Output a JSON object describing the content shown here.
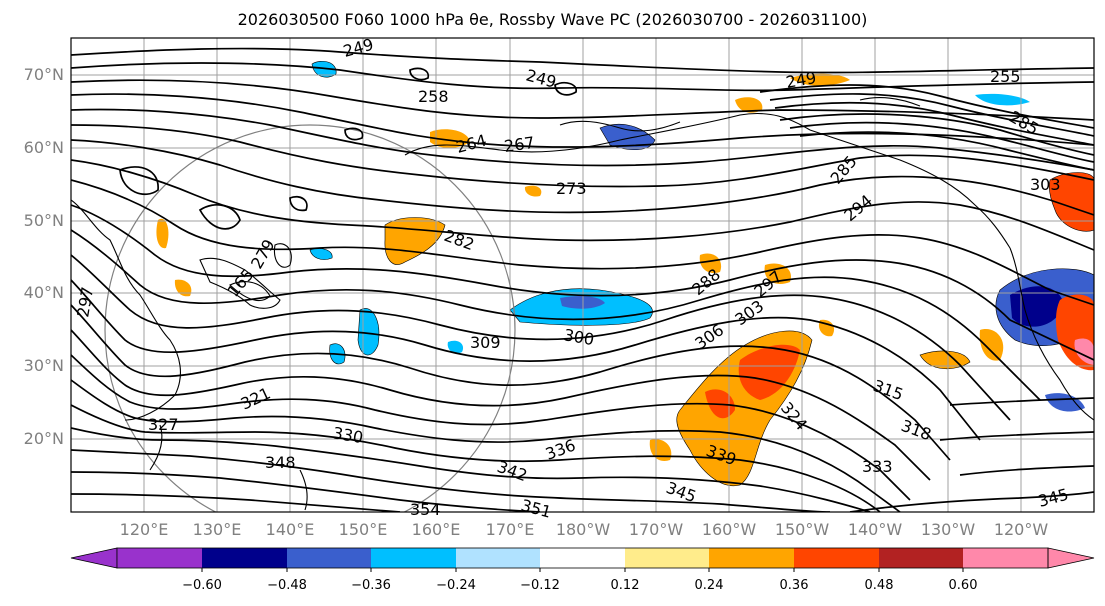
{
  "title": "2026030500 F060 1000 hPa θe, Rossby Wave PC (2026030700 - 2026031100)",
  "map": {
    "projection": "equirectangular",
    "lat_range": [
      10,
      75
    ],
    "lon_range_deg_east": [
      110,
      250
    ],
    "lat_ticks": [
      "70°N",
      "60°N",
      "50°N",
      "40°N",
      "30°N",
      "20°N"
    ],
    "lon_ticks": [
      "120°E",
      "130°E",
      "140°E",
      "150°E",
      "160°E",
      "170°E",
      "180°W",
      "170°W",
      "160°W",
      "150°W",
      "140°W",
      "130°W",
      "120°W"
    ],
    "contour_labels": [
      "249",
      "249",
      "249",
      "258",
      "264",
      "267",
      "273",
      "282",
      "285",
      "294",
      "288",
      "297",
      "303",
      "306",
      "300",
      "309",
      "315",
      "318",
      "324",
      "321",
      "327",
      "330",
      "336",
      "339",
      "333",
      "342",
      "345",
      "345",
      "348",
      "351",
      "354",
      "165",
      "279",
      "297",
      "303",
      "285",
      "255"
    ],
    "colors": {
      "coast": "#000000",
      "contour": "#000000",
      "grid": "#a0a0a0",
      "circle": "#808080"
    }
  },
  "colorbar": {
    "colors": [
      "#9932cc",
      "#00008b",
      "#3a5fcd",
      "#00bfff",
      "#b0e2ff",
      "#ffffff",
      "#ffec8b",
      "#ffa500",
      "#ff4500",
      "#b22222",
      "#ff88aa"
    ],
    "ticks": [
      "−0.60",
      "−0.48",
      "−0.36",
      "−0.24",
      "−0.12",
      "0.12",
      "0.24",
      "0.36",
      "0.48",
      "0.60"
    ],
    "extend": "both"
  }
}
